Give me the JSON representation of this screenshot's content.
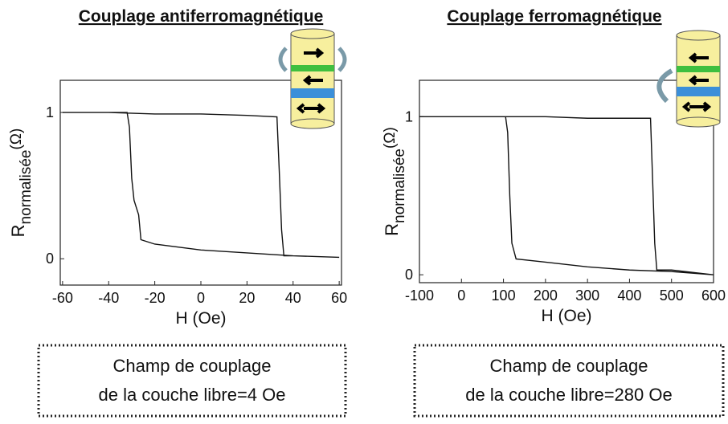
{
  "chart_data": [
    {
      "type": "line",
      "title": "Couplage antiferromagnétique",
      "x_label": "H (Oe)",
      "y_label": [
        "R",
        "normalisée",
        "(Ω)"
      ],
      "annotation": [
        "Champ de couplage",
        "de la couche libre=4 Oe"
      ],
      "x": [
        -60,
        -40,
        -20,
        0,
        20,
        33,
        34,
        35,
        36,
        40,
        60,
        40,
        20,
        0,
        -20,
        -26,
        -27,
        -29,
        -30,
        -31,
        -32,
        -40,
        -60
      ],
      "values": [
        1,
        1,
        0.99,
        0.99,
        0.98,
        0.97,
        0.6,
        0.2,
        0.02,
        0.02,
        0.01,
        0.02,
        0.04,
        0.06,
        0.1,
        0.13,
        0.3,
        0.4,
        0.55,
        0.9,
        1,
        1,
        1
      ],
      "color": "#111111",
      "xlim": [
        -61,
        61
      ],
      "ylim": [
        -0.18,
        1.22
      ],
      "xticks": [
        -60,
        -40,
        -20,
        0,
        20,
        40,
        60
      ],
      "yticks": [
        0,
        1
      ]
    },
    {
      "type": "line",
      "title": "Couplage ferromagnétique",
      "x_label": "H (Oe)",
      "y_label": [
        "R",
        "normalisée",
        "(Ω)"
      ],
      "annotation": [
        "Champ de couplage",
        "de la couche libre=280 Oe"
      ],
      "x": [
        -100,
        0,
        100,
        200,
        300,
        400,
        450,
        455,
        460,
        465,
        500,
        600,
        500,
        400,
        300,
        200,
        130,
        120,
        115,
        110,
        105,
        0,
        -100
      ],
      "values": [
        1,
        1,
        1,
        1,
        0.99,
        0.99,
        0.99,
        0.6,
        0.2,
        0.03,
        0.03,
        0,
        0.02,
        0.03,
        0.05,
        0.08,
        0.1,
        0.2,
        0.5,
        0.9,
        1,
        1,
        1
      ],
      "color": "#111111",
      "xlim": [
        -100,
        600
      ],
      "ylim": [
        -0.05,
        1.23
      ],
      "xticks": [
        -100,
        0,
        100,
        200,
        300,
        400,
        500,
        600
      ],
      "yticks": [
        0,
        1
      ]
    }
  ]
}
